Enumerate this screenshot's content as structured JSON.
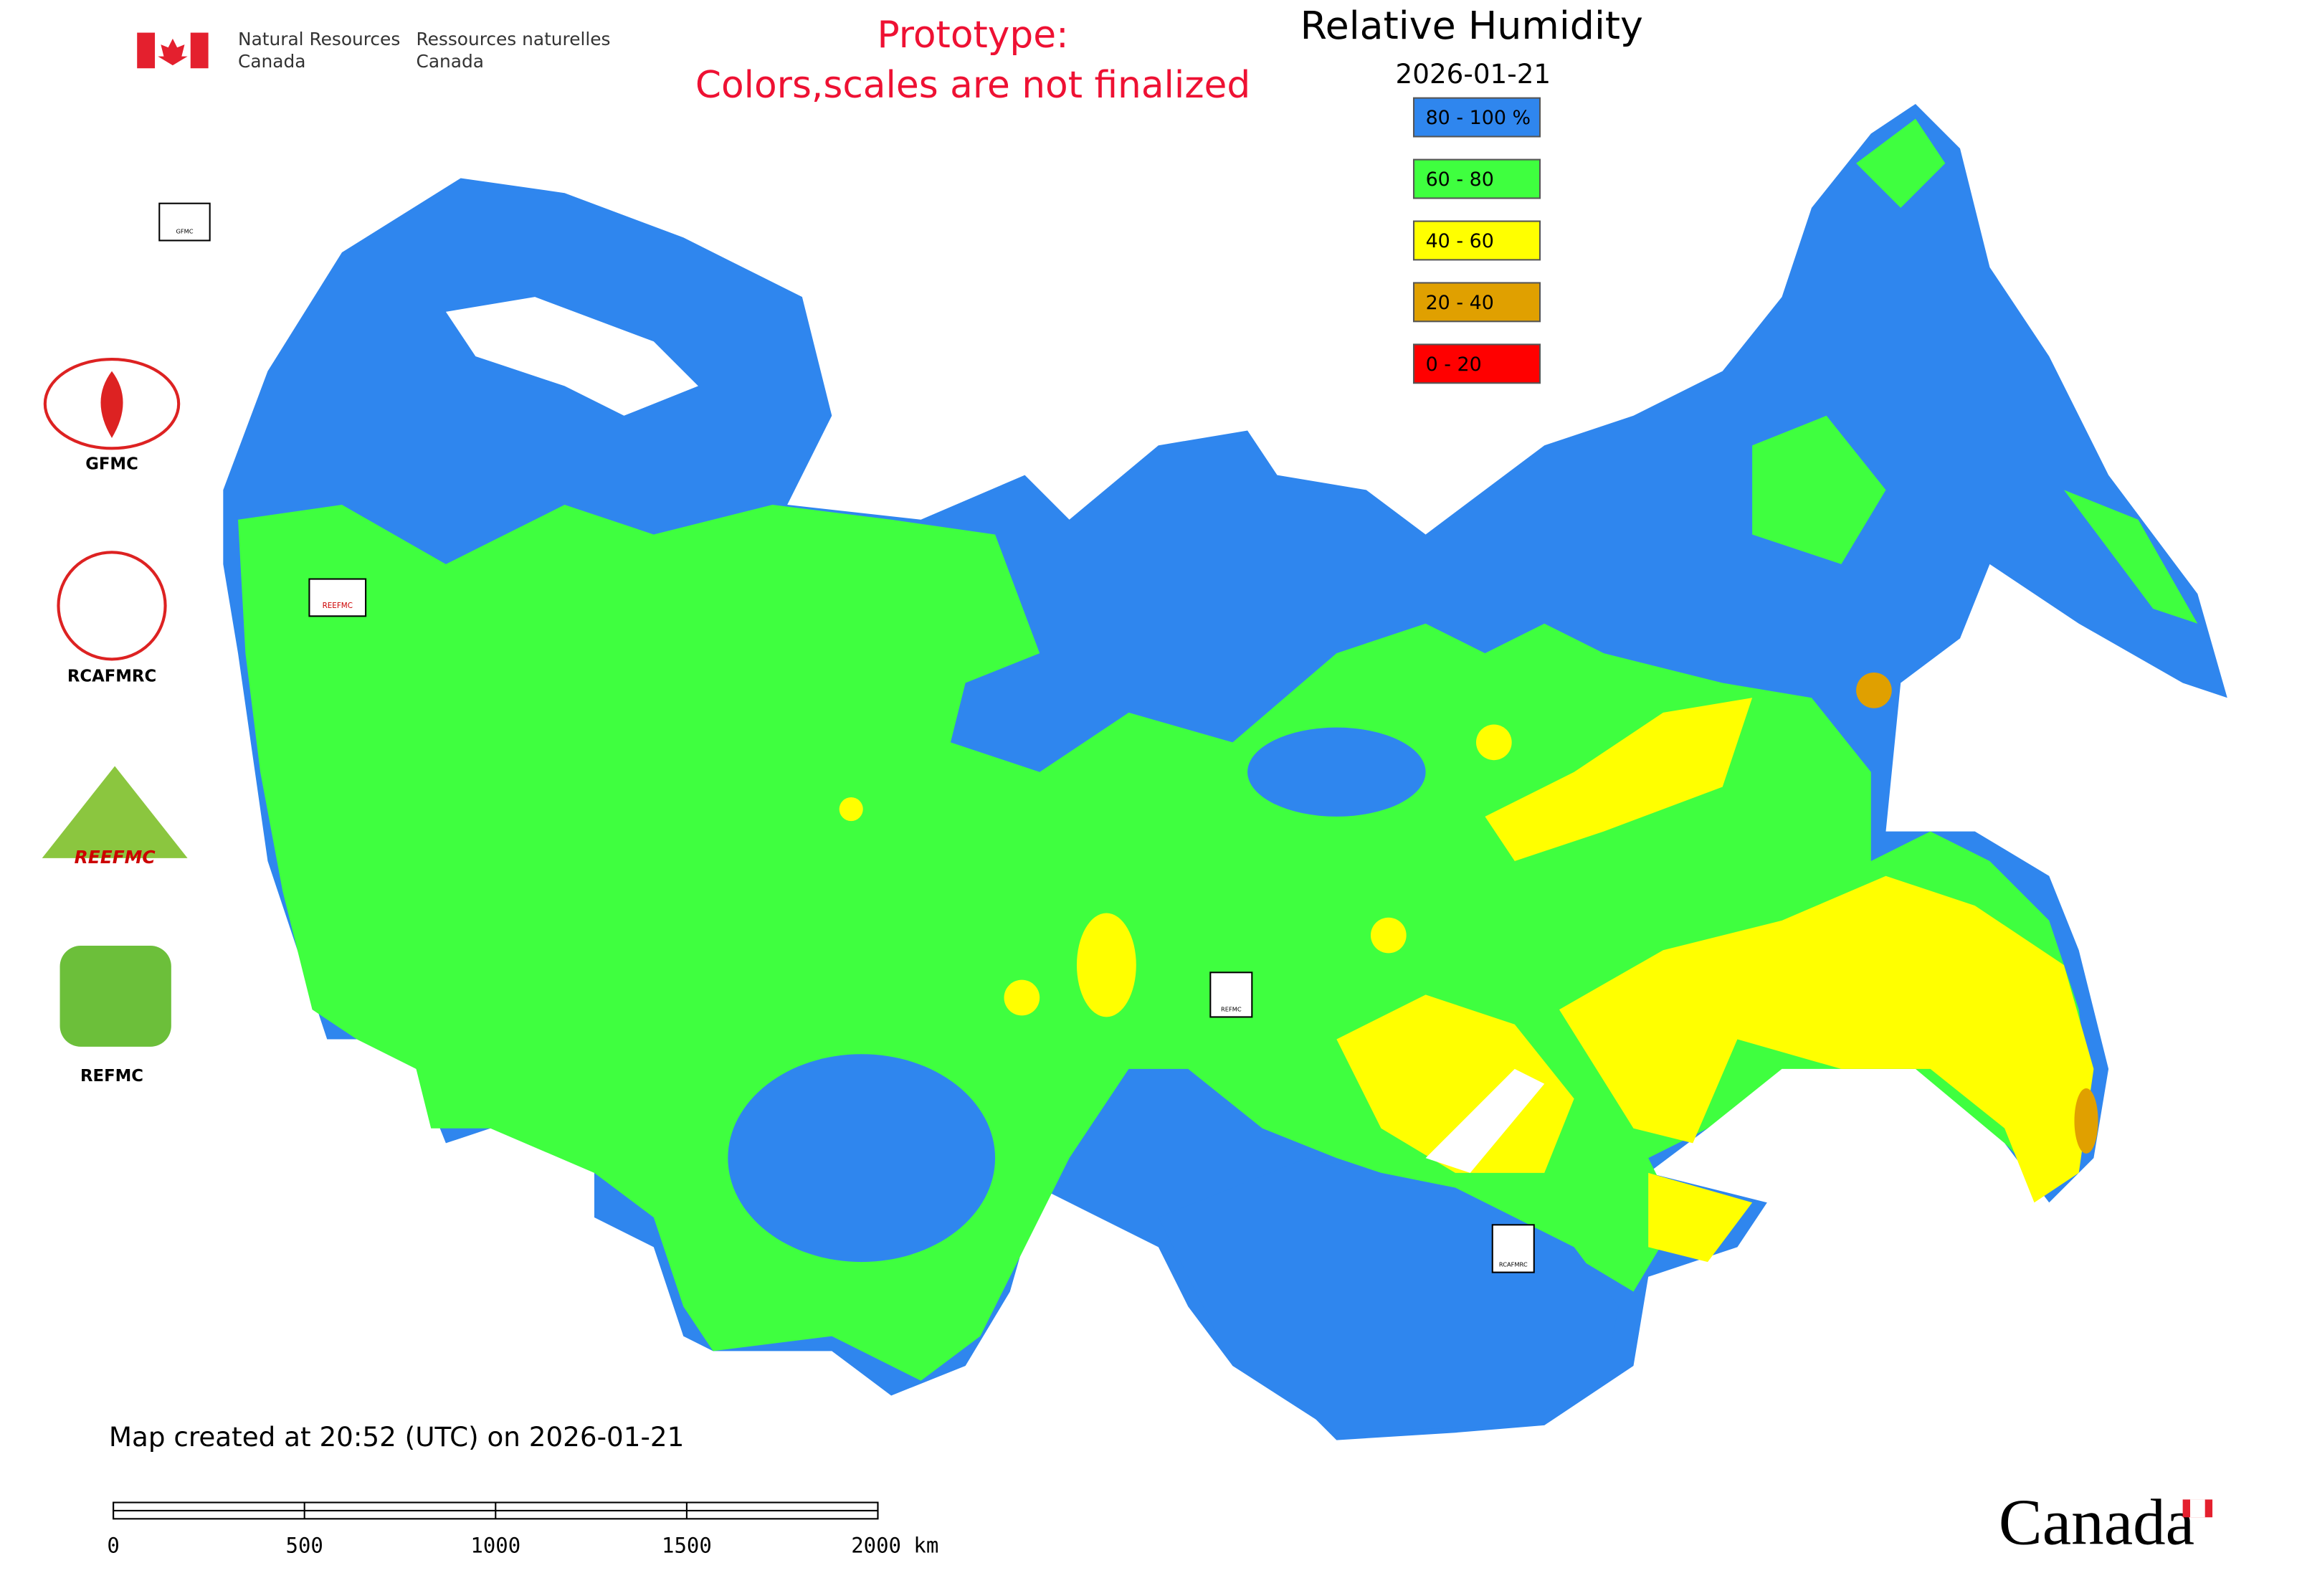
{
  "header": {
    "agency_en": [
      "Natural Resources",
      "Canada"
    ],
    "agency_fr": [
      "Ressources naturelles",
      "Canada"
    ],
    "notice": [
      "Prototype:",
      "Colors,scales are not finalized"
    ]
  },
  "map": {
    "title": "Relative Humidity",
    "date": "2026-01-21",
    "legend": [
      {
        "label": "80 - 100 %",
        "color": "#2f86ee"
      },
      {
        "label": "60 - 80",
        "color": "#3fff3f"
      },
      {
        "label": "40 - 60",
        "color": "#ffff00"
      },
      {
        "label": "20 - 40",
        "color": "#e0a000"
      },
      {
        "label": "0 - 20",
        "color": "#ff0000"
      }
    ]
  },
  "logos": [
    "GFMC",
    "RCAFMRC",
    "REEFMC",
    "REFMC"
  ],
  "footer": {
    "created": "Map created at 20:52 (UTC) on 2026-01-21",
    "scale": [
      "0",
      "500",
      "1000",
      "1500",
      "2000 km"
    ],
    "wordmark": "Canada"
  }
}
